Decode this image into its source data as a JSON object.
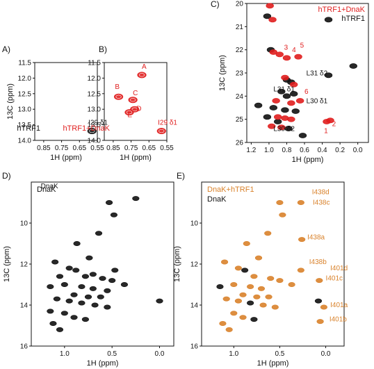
{
  "colors": {
    "black": "#111111",
    "red": "#e01e1e",
    "orange": "#d9822b"
  },
  "chart_data": [
    {
      "panel": "A)",
      "type": "scatter",
      "xlabel": "1H (ppm)",
      "ylabel": "13C (ppm)",
      "xlim": [
        0.9,
        0.55
      ],
      "ylim": [
        11.5,
        14.0
      ],
      "xticks": [
        "0.85",
        "0.75",
        "0.65",
        "0.55"
      ],
      "yticks": [
        "11.5",
        "12.0",
        "12.5",
        "13.0",
        "13.5",
        "14.0"
      ],
      "legend": [
        "hTRF1"
      ],
      "series": [
        {
          "name": "hTRF1",
          "color": "black",
          "points": [
            [
              0.58,
              13.7
            ]
          ]
        }
      ],
      "annotations": [
        {
          "text": "I29 δ1",
          "x": 0.6,
          "y": 13.5
        }
      ]
    },
    {
      "panel": "B)",
      "type": "scatter",
      "xlabel": "1H (ppm)",
      "ylabel": "",
      "xlim": [
        0.9,
        0.55
      ],
      "ylim": [
        11.5,
        14.0
      ],
      "xticks": [
        "0.85",
        "0.75",
        "0.65",
        "0.55"
      ],
      "yticks": [
        "11.5",
        "12.0",
        "12.5",
        "13.0",
        "13.5",
        "14.0"
      ],
      "legend": [
        "hTRF1+DnaK"
      ],
      "series": [
        {
          "name": "hTRF1+DnaK",
          "color": "red",
          "points": [
            [
              0.69,
              11.9
            ],
            [
              0.82,
              12.6
            ],
            [
              0.74,
              12.7
            ],
            [
              0.73,
              13.0
            ],
            [
              0.76,
              13.1
            ],
            [
              0.58,
              13.7
            ]
          ]
        }
      ],
      "annotations": [
        {
          "text": "A",
          "x": 0.69,
          "y": 11.7
        },
        {
          "text": "B",
          "x": 0.84,
          "y": 12.35
        },
        {
          "text": "C",
          "x": 0.74,
          "y": 12.55
        },
        {
          "text": "D",
          "x": 0.72,
          "y": 13.05
        },
        {
          "text": "E",
          "x": 0.77,
          "y": 13.25
        },
        {
          "text": "I29 δ1",
          "x": 0.6,
          "y": 13.5
        }
      ]
    },
    {
      "panel": "C)",
      "type": "scatter",
      "xlabel": "1H (ppm)",
      "ylabel": "13C (ppm)",
      "xlim": [
        1.25,
        -0.12
      ],
      "ylim": [
        20,
        26
      ],
      "xticks": [
        "1.2",
        "1.0",
        "0.8",
        "0.6",
        "0.4",
        "0.2",
        "0.0"
      ],
      "yticks": [
        "20",
        "21",
        "22",
        "23",
        "24",
        "25",
        "26"
      ],
      "legend": [
        "hTRF1+DnaK",
        "hTRF1"
      ],
      "series": [
        {
          "name": "hTRF1",
          "color": "black",
          "points": [
            [
              1.02,
              20.55
            ],
            [
              0.33,
              20.7
            ],
            [
              0.98,
              22.0
            ],
            [
              0.8,
              23.3
            ],
            [
              0.75,
              23.4
            ],
            [
              0.33,
              23.1
            ],
            [
              0.86,
              23.8
            ],
            [
              0.8,
              24.0
            ],
            [
              0.72,
              23.9
            ],
            [
              1.12,
              24.4
            ],
            [
              0.95,
              24.5
            ],
            [
              0.82,
              24.6
            ],
            [
              0.7,
              24.65
            ],
            [
              1.02,
              24.9
            ],
            [
              0.9,
              25.1
            ],
            [
              0.78,
              25.4
            ],
            [
              0.62,
              25.7
            ],
            [
              0.05,
              22.7
            ]
          ]
        },
        {
          "name": "hTRF1+DnaK",
          "color": "red",
          "points": [
            [
              0.99,
              20.1
            ],
            [
              0.96,
              20.7
            ],
            [
              0.95,
              22.1
            ],
            [
              0.88,
              22.2
            ],
            [
              0.8,
              22.35
            ],
            [
              0.67,
              22.3
            ],
            [
              0.82,
              23.2
            ],
            [
              0.72,
              23.5
            ],
            [
              0.92,
              24.2
            ],
            [
              0.75,
              24.3
            ],
            [
              0.65,
              24.2
            ],
            [
              0.9,
              24.9
            ],
            [
              0.82,
              24.95
            ],
            [
              0.75,
              25.0
            ],
            [
              0.97,
              25.3
            ],
            [
              0.86,
              25.35
            ],
            [
              0.35,
              25.1
            ],
            [
              0.31,
              25.05
            ]
          ]
        }
      ],
      "annotations": [
        {
          "text": "3",
          "x": 0.83,
          "y": 22.0
        },
        {
          "text": "4",
          "x": 0.74,
          "y": 22.1
        },
        {
          "text": "5",
          "x": 0.65,
          "y": 21.9
        },
        {
          "text": "L31 δ2",
          "x": 0.58,
          "y": 23.1
        },
        {
          "text": "L31 δ1",
          "x": 0.95,
          "y": 23.8
        },
        {
          "text": "6",
          "x": 0.6,
          "y": 23.9
        },
        {
          "text": "L30 δ1",
          "x": 0.58,
          "y": 24.3
        },
        {
          "text": "L30 δ2",
          "x": 0.95,
          "y": 25.5
        },
        {
          "text": "1",
          "x": 0.38,
          "y": 25.6
        },
        {
          "text": "2",
          "x": 0.29,
          "y": 25.3
        }
      ]
    },
    {
      "panel": "D)",
      "type": "scatter",
      "xlabel": "1H (ppm)",
      "ylabel": "13C (ppm)",
      "xlim": [
        1.35,
        -0.15
      ],
      "ylim": [
        8,
        16
      ],
      "xticks": [
        "1.0",
        "0.5",
        "0.0"
      ],
      "yticks": [
        "10",
        "12",
        "14",
        "16"
      ],
      "legend": [
        "DnaK"
      ],
      "series": [
        {
          "name": "DnaK",
          "color": "black",
          "points": [
            [
              0.53,
              9.0
            ],
            [
              0.48,
              9.6
            ],
            [
              0.64,
              10.5
            ],
            [
              0.87,
              11.0
            ],
            [
              0.74,
              11.7
            ],
            [
              1.1,
              11.9
            ],
            [
              0.95,
              12.2
            ],
            [
              0.88,
              12.3
            ],
            [
              0.78,
              12.6
            ],
            [
              0.7,
              12.5
            ],
            [
              1.05,
              12.6
            ],
            [
              0.6,
              12.7
            ],
            [
              0.47,
              12.3
            ],
            [
              0.5,
              12.8
            ],
            [
              0.37,
              13.0
            ],
            [
              1.15,
              13.1
            ],
            [
              1.0,
              13.0
            ],
            [
              0.82,
              13.1
            ],
            [
              0.7,
              13.2
            ],
            [
              0.55,
              13.3
            ],
            [
              0.9,
              13.5
            ],
            [
              0.75,
              13.6
            ],
            [
              0.62,
              13.6
            ],
            [
              1.08,
              13.7
            ],
            [
              0.95,
              13.8
            ],
            [
              0.82,
              13.9
            ],
            [
              0.68,
              14.0
            ],
            [
              0.55,
              14.1
            ],
            [
              1.15,
              14.3
            ],
            [
              1.0,
              14.4
            ],
            [
              0.9,
              14.6
            ],
            [
              0.78,
              14.7
            ],
            [
              1.12,
              14.9
            ],
            [
              1.05,
              15.2
            ],
            [
              0.25,
              8.8
            ],
            [
              0.0,
              13.8
            ]
          ]
        }
      ],
      "annotations": [
        {
          "text": "DnaK",
          "x": 1.25,
          "y": 8.3
        }
      ]
    },
    {
      "panel": "E)",
      "type": "scatter",
      "xlabel": "1H (ppm)",
      "ylabel": "13C (ppm)",
      "xlim": [
        1.35,
        -0.2
      ],
      "ylim": [
        8,
        16
      ],
      "xticks": [
        "1.0",
        "0.5",
        "0.0"
      ],
      "yticks": [
        "10",
        "12",
        "14",
        "16"
      ],
      "legend": [
        "DnaK+hTRF1",
        "DnaK"
      ],
      "series": [
        {
          "name": "DnaK+hTRF1",
          "color": "orange",
          "points": [
            [
              0.5,
              9.0
            ],
            [
              0.47,
              9.6
            ],
            [
              0.27,
              9.0
            ],
            [
              0.63,
              10.5
            ],
            [
              0.86,
              11.0
            ],
            [
              0.26,
              10.8
            ],
            [
              0.73,
              11.7
            ],
            [
              1.1,
              11.9
            ],
            [
              0.95,
              12.2
            ],
            [
              0.78,
              12.6
            ],
            [
              0.6,
              12.7
            ],
            [
              0.5,
              12.8
            ],
            [
              0.37,
              13.0
            ],
            [
              1.0,
              13.0
            ],
            [
              0.82,
              13.1
            ],
            [
              0.7,
              13.2
            ],
            [
              0.9,
              13.5
            ],
            [
              0.75,
              13.6
            ],
            [
              0.62,
              13.6
            ],
            [
              1.08,
              13.7
            ],
            [
              0.95,
              13.8
            ],
            [
              0.68,
              14.0
            ],
            [
              0.55,
              14.1
            ],
            [
              1.0,
              14.4
            ],
            [
              0.9,
              14.6
            ],
            [
              1.12,
              14.9
            ],
            [
              1.05,
              15.2
            ],
            [
              0.27,
              12.3
            ],
            [
              0.07,
              12.8
            ],
            [
              0.02,
              14.1
            ],
            [
              0.06,
              14.8
            ]
          ]
        },
        {
          "name": "DnaK",
          "color": "black",
          "points": [
            [
              0.88,
              12.3
            ],
            [
              1.15,
              13.1
            ],
            [
              0.82,
              13.9
            ],
            [
              0.78,
              14.7
            ],
            [
              0.08,
              13.8
            ]
          ]
        }
      ],
      "annotations": [
        {
          "text": "I438d",
          "x": 0.15,
          "y": 8.6
        },
        {
          "text": "I438c",
          "x": 0.14,
          "y": 9.1
        },
        {
          "text": "I438a",
          "x": 0.2,
          "y": 10.8
        },
        {
          "text": "I438b",
          "x": 0.18,
          "y": 12.0
        },
        {
          "text": "I401d",
          "x": -0.05,
          "y": 12.3
        },
        {
          "text": "I401c",
          "x": 0.0,
          "y": 12.8
        },
        {
          "text": "I401a",
          "x": -0.05,
          "y": 14.1
        },
        {
          "text": "I401b",
          "x": -0.04,
          "y": 14.8
        }
      ]
    }
  ]
}
